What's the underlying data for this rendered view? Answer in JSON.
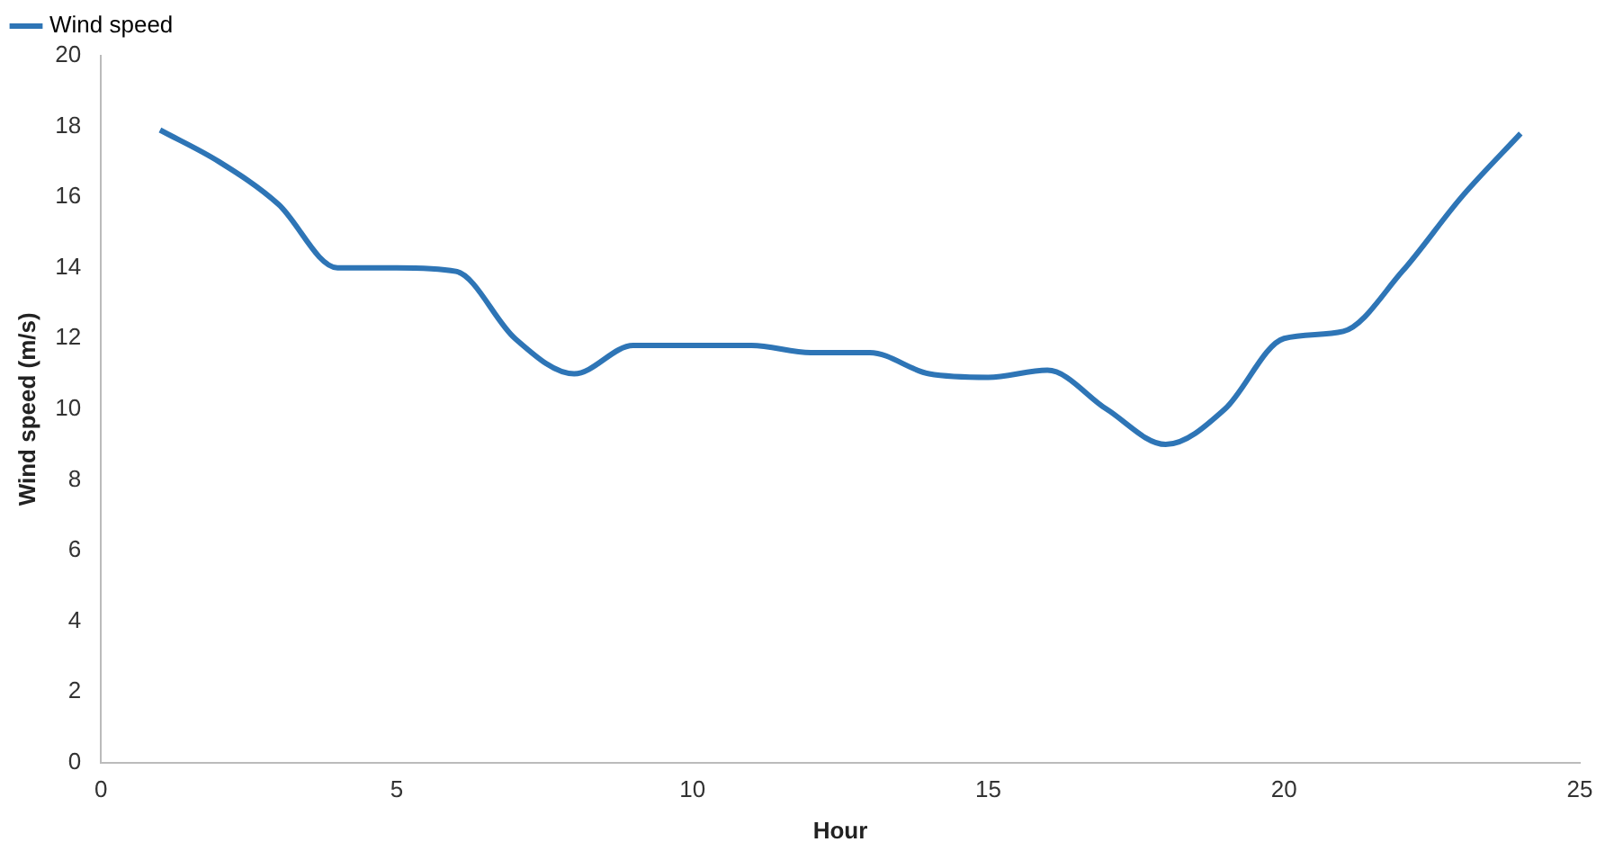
{
  "chart_data": {
    "type": "line",
    "xlabel": "Hour",
    "ylabel": "Wind speed (m/s)",
    "x": [
      1,
      2,
      3,
      4,
      5,
      6,
      7,
      8,
      9,
      10,
      11,
      12,
      13,
      14,
      15,
      16,
      17,
      18,
      19,
      20,
      21,
      22,
      23,
      24
    ],
    "series": [
      {
        "name": "Wind speed",
        "color": "#2e75b6",
        "values": [
          17.9,
          17.0,
          15.8,
          14.0,
          14.0,
          13.9,
          12.0,
          11.0,
          11.8,
          11.8,
          11.8,
          11.6,
          11.6,
          11.0,
          10.9,
          11.1,
          10.0,
          9.0,
          10.0,
          12.0,
          12.2,
          13.9,
          16.0,
          17.8
        ]
      }
    ],
    "xlim": [
      0,
      25
    ],
    "xticks": [
      0,
      5,
      10,
      15,
      20,
      25
    ],
    "ylim": [
      0,
      20
    ],
    "yticks": [
      0,
      2,
      4,
      6,
      8,
      10,
      12,
      14,
      16,
      18,
      20
    ],
    "grid": false,
    "legend": "top left",
    "marker": "none"
  }
}
